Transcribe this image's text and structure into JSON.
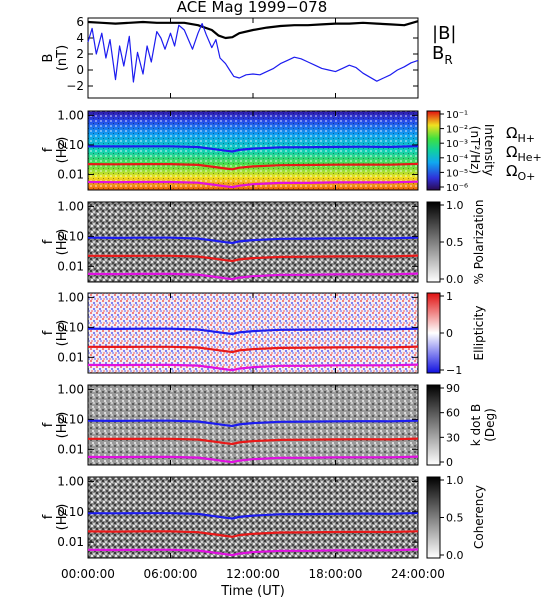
{
  "title": "ACE Mag 1999−078",
  "xaxis": {
    "label": "Time (UT)",
    "ticks": [
      "00:00:00",
      "06:00:00",
      "12:00:00",
      "18:00:00",
      "24:00:00"
    ],
    "range_hours": [
      0,
      24
    ]
  },
  "freq_axis": {
    "label": "f",
    "unit": "(Hz)",
    "ticks": [
      "1.00",
      "0.10",
      "0.01"
    ],
    "tick_values": [
      1.0,
      0.1,
      0.01
    ],
    "range": [
      0.003,
      1.4
    ],
    "scale": "log"
  },
  "legend": {
    "b_total": {
      "text": "|B|",
      "color": "#000000"
    },
    "b_radial": {
      "base": "B",
      "sub": "R",
      "color": "#1c1cf0"
    }
  },
  "gyro_labels": [
    {
      "base": "Ω",
      "sub": "H+",
      "color": "#1c1cf0"
    },
    {
      "base": "Ω",
      "sub": "He+",
      "color": "#e81818"
    },
    {
      "base": "Ω",
      "sub": "O+",
      "color": "#e010e0"
    }
  ],
  "panels": [
    {
      "id": "intensity",
      "colorbar_label": "Intensity",
      "colorbar_unit": "(nT²/Hz)",
      "colorbar_ticks": [
        "10⁻¹",
        "10⁻²",
        "10⁻³",
        "10⁻⁴",
        "10⁻⁵",
        "10⁻⁶"
      ],
      "colormap": "rainbow"
    },
    {
      "id": "polarization",
      "colorbar_label": "% Polarization",
      "colorbar_ticks": [
        "1.0",
        "0.5",
        "0.0"
      ],
      "colormap": "gray"
    },
    {
      "id": "ellipticity",
      "colorbar_label": "Ellipticity",
      "colorbar_ticks": [
        "1",
        "0",
        "−1"
      ],
      "colormap": "blue-white-red"
    },
    {
      "id": "kdotb",
      "colorbar_label": "k dot B",
      "colorbar_unit": "(Deg)",
      "colorbar_ticks": [
        "90",
        "60",
        "30",
        "0"
      ],
      "colormap": "gray"
    },
    {
      "id": "coherency",
      "colorbar_label": "Coherency",
      "colorbar_ticks": [
        "1.0",
        "0.5",
        "0.0"
      ],
      "colormap": "gray"
    }
  ],
  "chart_data": {
    "type": "line",
    "title": "ACE Mag 1999−078",
    "xlabel": "Time (UT)",
    "xlim": [
      0,
      24
    ],
    "b_panel": {
      "ylabel": "B",
      "yunit": "(nT)",
      "ylim": [
        -3.5,
        6.5
      ],
      "yticks": [
        "6",
        "4",
        "2",
        "0",
        "−2"
      ],
      "ytick_values": [
        6,
        4,
        2,
        0,
        -2
      ],
      "series": [
        {
          "name": "|B|",
          "color": "#000000",
          "x": [
            0,
            1,
            2,
            3,
            4,
            5,
            6,
            7,
            8,
            9,
            9.5,
            10,
            10.5,
            11,
            12,
            13,
            14,
            15,
            16,
            17,
            18,
            19,
            20,
            21,
            22,
            23,
            24
          ],
          "y": [
            6.0,
            5.9,
            5.8,
            5.9,
            6.0,
            5.9,
            5.9,
            5.9,
            5.6,
            5.0,
            4.3,
            4.0,
            4.1,
            4.6,
            5.0,
            5.3,
            5.5,
            5.6,
            5.6,
            5.7,
            5.8,
            5.8,
            5.9,
            5.8,
            5.7,
            5.6,
            6.1
          ]
        },
        {
          "name": "B_R",
          "color": "#1c1cf0",
          "x": [
            0,
            0.3,
            0.6,
            1,
            1.3,
            1.6,
            2,
            2.3,
            2.6,
            3,
            3.3,
            3.6,
            4,
            4.3,
            4.6,
            5,
            5.3,
            5.6,
            6,
            6.3,
            6.6,
            7,
            7.3,
            7.6,
            8,
            8.3,
            8.6,
            9,
            9.3,
            9.6,
            10,
            10.3,
            10.6,
            11,
            11.5,
            12,
            12.5,
            13,
            13.5,
            14,
            14.5,
            15,
            15.5,
            16,
            16.5,
            17,
            17.5,
            18,
            18.5,
            19,
            19.5,
            20,
            20.5,
            21,
            21.5,
            22,
            22.5,
            23,
            23.5,
            24
          ],
          "y": [
            3.5,
            5.2,
            2.0,
            4.6,
            1.5,
            3.8,
            -1.2,
            3.0,
            0.5,
            4.2,
            -1.5,
            2.2,
            -0.5,
            3.0,
            1.0,
            4.8,
            4.0,
            2.6,
            4.6,
            3.0,
            5.6,
            5.0,
            3.8,
            2.6,
            4.6,
            5.8,
            4.4,
            2.8,
            3.8,
            1.5,
            0.8,
            0.0,
            -0.8,
            -1.0,
            -0.6,
            -0.5,
            -0.6,
            -0.2,
            0.2,
            0.8,
            1.2,
            1.6,
            1.4,
            1.0,
            0.6,
            0.2,
            0.0,
            -0.2,
            0.2,
            0.6,
            0.3,
            -0.4,
            -0.9,
            -1.4,
            -1.0,
            -0.6,
            0.0,
            0.4,
            0.9,
            1.2
          ]
        }
      ]
    },
    "gyrofrequencies": {
      "x": [
        0,
        2,
        4,
        6,
        8,
        9,
        10,
        10.5,
        11,
        12,
        14,
        16,
        18,
        20,
        22,
        24
      ],
      "series": [
        {
          "name": "ΩH+",
          "color": "#1c1cf0",
          "y": [
            0.09,
            0.089,
            0.09,
            0.09,
            0.085,
            0.074,
            0.064,
            0.06,
            0.068,
            0.075,
            0.083,
            0.084,
            0.086,
            0.087,
            0.086,
            0.091
          ]
        },
        {
          "name": "ΩHe+",
          "color": "#e81818",
          "y": [
            0.0225,
            0.0222,
            0.0225,
            0.0225,
            0.0212,
            0.0185,
            0.016,
            0.015,
            0.017,
            0.0188,
            0.0207,
            0.021,
            0.0215,
            0.0217,
            0.0215,
            0.0228
          ]
        },
        {
          "name": "ΩO+",
          "color": "#e010e0",
          "y": [
            0.0056,
            0.0055,
            0.0056,
            0.0056,
            0.0053,
            0.0046,
            0.004,
            0.00375,
            0.0042,
            0.0047,
            0.0052,
            0.0052,
            0.0054,
            0.0054,
            0.0054,
            0.0057
          ]
        }
      ]
    }
  }
}
